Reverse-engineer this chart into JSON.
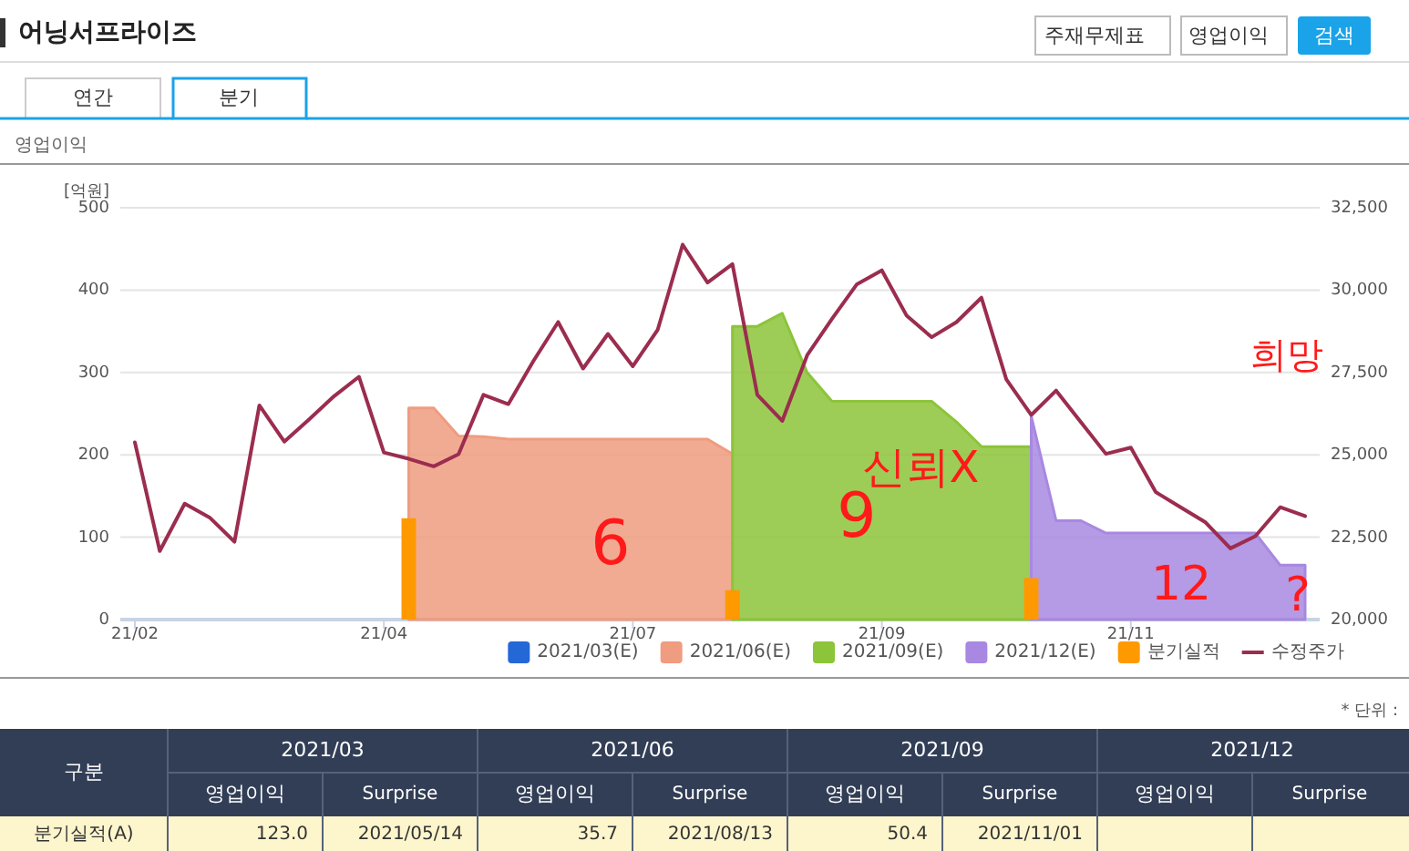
{
  "chart_data": {
    "type": "line",
    "title": "어닝서프라이즈",
    "subtitle": "영업이익",
    "ylabel": "[억원]",
    "categories": [
      "21/02",
      null,
      null,
      null,
      null,
      null,
      null,
      null,
      null,
      null,
      "21/04",
      null,
      null,
      null,
      null,
      null,
      null,
      null,
      null,
      null,
      "21/07",
      null,
      null,
      null,
      null,
      null,
      null,
      null,
      null,
      null,
      "21/09",
      null,
      null,
      null,
      null,
      null,
      null,
      null,
      null,
      null,
      "21/11",
      null,
      null,
      null,
      null,
      null,
      null,
      null
    ],
    "series": [
      {
        "name": "2021/03(E)",
        "type": "area",
        "color": "#2468d8",
        "values": [
          null,
          null,
          null,
          null,
          null,
          null,
          null,
          null,
          null,
          null,
          null,
          null,
          null,
          null,
          null,
          null,
          null,
          null,
          null,
          null,
          null,
          null,
          null,
          null,
          null,
          null,
          null,
          null,
          null,
          null,
          null,
          null,
          null,
          null,
          null,
          null,
          null,
          null,
          null,
          null,
          null,
          null,
          null,
          null,
          null,
          null,
          null,
          null
        ]
      },
      {
        "name": "2021/06(E)",
        "type": "area",
        "color": "#ef9c80",
        "values": [
          null,
          null,
          null,
          null,
          null,
          null,
          null,
          null,
          null,
          null,
          null,
          257,
          257,
          223,
          222,
          219,
          219,
          219,
          219,
          219,
          219,
          219,
          219,
          219,
          201,
          null,
          null,
          null,
          null,
          null,
          null,
          null,
          null,
          null,
          null,
          null,
          null,
          null,
          null,
          null,
          null,
          null,
          null,
          null,
          null,
          null,
          null,
          null
        ]
      },
      {
        "name": "2021/09(E)",
        "type": "area",
        "color": "#8cc43a",
        "values": [
          null,
          null,
          null,
          null,
          null,
          null,
          null,
          null,
          null,
          null,
          null,
          null,
          null,
          null,
          null,
          null,
          null,
          null,
          null,
          null,
          null,
          null,
          null,
          null,
          356,
          356,
          372,
          300,
          265,
          265,
          265,
          265,
          265,
          240,
          210,
          210,
          210,
          null,
          null,
          null,
          null,
          null,
          null,
          null,
          null,
          null,
          null,
          null
        ]
      },
      {
        "name": "2021/12(E)",
        "type": "area",
        "color": "#a888e0",
        "values": [
          null,
          null,
          null,
          null,
          null,
          null,
          null,
          null,
          null,
          null,
          null,
          null,
          null,
          null,
          null,
          null,
          null,
          null,
          null,
          null,
          null,
          null,
          null,
          null,
          null,
          null,
          null,
          null,
          null,
          null,
          null,
          null,
          null,
          null,
          null,
          null,
          247,
          120,
          120,
          105,
          105,
          105,
          105,
          105,
          105,
          105,
          66,
          66
        ]
      },
      {
        "name": "분기실적",
        "type": "bar",
        "color": "#ff9900",
        "values": [
          null,
          null,
          null,
          null,
          null,
          null,
          null,
          null,
          null,
          null,
          null,
          123.0,
          null,
          null,
          null,
          null,
          null,
          null,
          null,
          null,
          null,
          null,
          null,
          null,
          35.7,
          null,
          null,
          null,
          null,
          null,
          null,
          null,
          null,
          null,
          null,
          null,
          50.4,
          null,
          null,
          null,
          null,
          null,
          null,
          null,
          null,
          null,
          null,
          null
        ]
      },
      {
        "name": "수정주가",
        "type": "line",
        "color": "#9b2d4f",
        "axis": "y2",
        "values": [
          25380,
          22080,
          23520,
          23100,
          22360,
          26500,
          25400,
          26080,
          26780,
          27370,
          25070,
          24880,
          24650,
          25020,
          26820,
          26540,
          27840,
          29030,
          27620,
          28670,
          27690,
          28800,
          31380,
          30230,
          30790,
          26820,
          26030,
          28020,
          29130,
          30180,
          30600,
          29220,
          28570,
          29030,
          29770,
          27290,
          26210,
          26950,
          25990,
          25030,
          25220,
          23870,
          23410,
          22950,
          22160,
          22530,
          23410,
          23140
        ]
      }
    ],
    "ylim": [
      0,
      500
    ],
    "yticks": [
      0,
      100,
      200,
      300,
      400,
      500
    ],
    "y2lim": [
      20000,
      32500
    ],
    "y2ticks": [
      {
        "value": 20000,
        "label": "20,000"
      },
      {
        "value": 22500,
        "label": "22,500"
      },
      {
        "value": 25000,
        "label": "25,000"
      },
      {
        "value": 27500,
        "label": "27,500"
      },
      {
        "value": 30000,
        "label": "30,000"
      },
      {
        "value": 32500,
        "label": "32,500"
      }
    ],
    "grid": "y",
    "legend": "bottom",
    "annotations": [
      "주재무제표",
      "영업이익",
      "검색",
      "연간",
      "분기",
      "* 단위 :",
      "구분",
      "2021/03",
      "2021/06",
      "2021/09",
      "2021/12",
      "영업이익",
      "Surprise",
      "분기실적(A)",
      "2021/05/14",
      "2021/08/13",
      "2021/11/01",
      "6",
      "9",
      "신뢰X",
      "12",
      "희망",
      "?",
      "123.0",
      "35.7",
      "50.4"
    ]
  }
}
